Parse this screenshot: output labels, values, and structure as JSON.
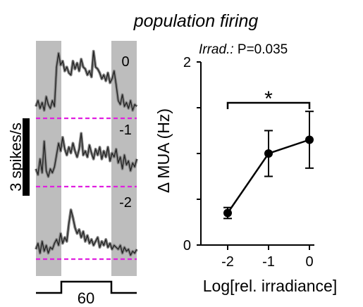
{
  "chart_data": [
    {
      "type": "line",
      "title": "population firing",
      "scale_bar_label": "3 spikes/s",
      "stimulus_label": "60",
      "shaded_epochs": "pre- and post-stimulus periods",
      "traces": [
        {
          "label": "0",
          "values": [
            0.6,
            0.9,
            0.5,
            0.8,
            0.4,
            1.1,
            0.7,
            0.5,
            0.9,
            0.6,
            2.6,
            3.3,
            2.7,
            2.9,
            2.4,
            2.6,
            2.3,
            2.2,
            2.9,
            2.5,
            2.8,
            2.4,
            3.0,
            2.6,
            2.5,
            2.2,
            2.4,
            2.1,
            3.4,
            2.6,
            2.5,
            2.3,
            2.0,
            2.2,
            1.9,
            2.3,
            1.8,
            2.0,
            2.4,
            1.7,
            0.9,
            0.7,
            1.2,
            0.6,
            0.8,
            0.5,
            0.9,
            0.4,
            0.7,
            0.6
          ]
        },
        {
          "label": "-1",
          "values": [
            0.9,
            0.6,
            1.4,
            0.7,
            2.3,
            0.8,
            0.5,
            0.9,
            0.7,
            1.0,
            1.6,
            2.2,
            1.8,
            2.5,
            1.9,
            1.6,
            2.0,
            1.7,
            2.2,
            1.8,
            1.5,
            1.9,
            2.7,
            1.6,
            1.8,
            1.5,
            2.1,
            1.7,
            1.4,
            1.9,
            1.6,
            2.0,
            1.4,
            1.8,
            1.5,
            2.0,
            1.3,
            1.7,
            1.5,
            1.9,
            1.2,
            1.5,
            0.9,
            1.6,
            1.1,
            1.3,
            0.8,
            1.2,
            1.0,
            1.4
          ]
        },
        {
          "label": "-2",
          "values": [
            0.5,
            0.8,
            0.3,
            0.9,
            0.4,
            0.7,
            0.3,
            0.6,
            0.5,
            0.8,
            1.0,
            0.7,
            1.3,
            0.8,
            1.1,
            0.9,
            1.8,
            2.5,
            2.1,
            1.6,
            1.3,
            1.5,
            1.1,
            1.4,
            0.9,
            1.2,
            0.8,
            1.0,
            0.7,
            0.9,
            1.1,
            0.6,
            0.9,
            0.7,
            1.0,
            0.6,
            0.8,
            0.5,
            0.7,
            0.6,
            0.5,
            0.7,
            0.3,
            0.6,
            0.4,
            0.5,
            0.2,
            0.4,
            0.3,
            0.5
          ]
        }
      ]
    },
    {
      "type": "line",
      "annotation": {
        "prefix": "Irrad.:",
        "text": " P=0.035"
      },
      "ylabel": "Δ MUA (Hz)",
      "xlabel": "Log[rel. irradiance]",
      "x": [
        -2,
        -1,
        0
      ],
      "xticks": [
        "-2",
        "-1",
        "0"
      ],
      "y": [
        0.35,
        1.0,
        1.15
      ],
      "yerr": [
        0.06,
        0.25,
        0.31
      ],
      "ylim": [
        0,
        2
      ],
      "yticks": [
        "0",
        "2"
      ],
      "significance": {
        "from": -2,
        "to": 0,
        "label": "*"
      }
    }
  ]
}
